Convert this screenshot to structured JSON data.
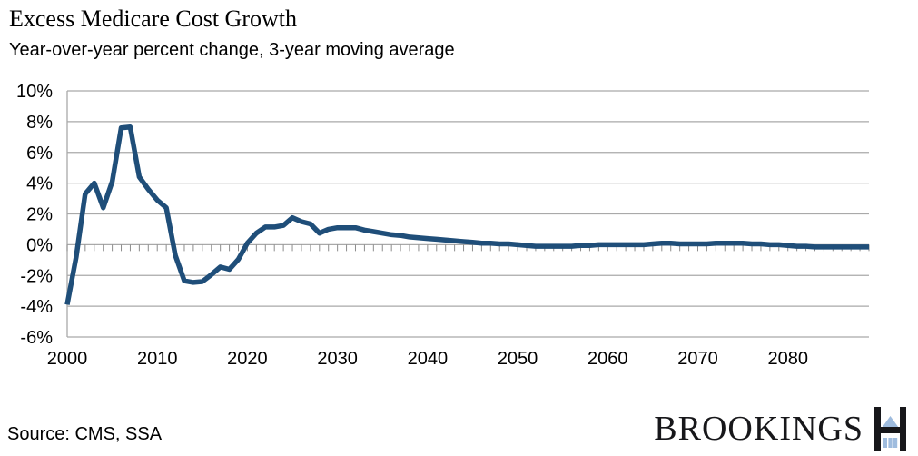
{
  "header": {
    "title": "Excess Medicare Cost Growth",
    "subtitle": "Year-over-year percent change, 3-year moving average"
  },
  "footer": {
    "source": "Source: CMS, SSA",
    "brand": "BROOKINGS"
  },
  "colors": {
    "line": "#1F4E79",
    "grid": "#A9A9A9",
    "axis_tick": "#8C8C8C",
    "text": "#000000",
    "brand_black": "#17171A",
    "brand_blue": "#9FBCDE"
  },
  "chart_data": {
    "type": "line",
    "title": "Excess Medicare Cost Growth",
    "subtitle": "Year-over-year percent change, 3-year moving average",
    "x_range": [
      2000,
      2089
    ],
    "x_step": 1,
    "xlabel": "",
    "ylabel": "",
    "ylim": [
      -6,
      10
    ],
    "grid": "horizontal",
    "legend": "none",
    "zero_axis_year_ticks": true,
    "x_tick_labels": [
      "2000",
      "2010",
      "2020",
      "2030",
      "2040",
      "2050",
      "2060",
      "2070",
      "2080"
    ],
    "x_tick_values": [
      2000,
      2010,
      2020,
      2030,
      2040,
      2050,
      2060,
      2070,
      2080
    ],
    "y_tick_labels": [
      "10%",
      "8%",
      "6%",
      "4%",
      "2%",
      "0%",
      "-2%",
      "-4%",
      "-6%"
    ],
    "y_tick_values": [
      10,
      8,
      6,
      4,
      2,
      0,
      -2,
      -4,
      -6
    ],
    "series": [
      {
        "name": "Excess Medicare cost growth",
        "values": [
          -3.9,
          -0.8,
          3.3,
          4.0,
          2.4,
          4.1,
          7.6,
          7.65,
          4.4,
          3.6,
          2.9,
          2.4,
          -0.7,
          -2.35,
          -2.45,
          -2.4,
          -1.95,
          -1.45,
          -1.6,
          -0.95,
          0.1,
          0.75,
          1.15,
          1.15,
          1.25,
          1.75,
          1.5,
          1.35,
          0.75,
          1.0,
          1.1,
          1.1,
          1.1,
          0.95,
          0.85,
          0.75,
          0.65,
          0.6,
          0.5,
          0.45,
          0.4,
          0.35,
          0.3,
          0.25,
          0.2,
          0.15,
          0.1,
          0.1,
          0.05,
          0.05,
          0.0,
          -0.05,
          -0.1,
          -0.1,
          -0.1,
          -0.1,
          -0.1,
          -0.05,
          -0.05,
          0.0,
          0.0,
          0.0,
          0.0,
          0.0,
          0.0,
          0.05,
          0.1,
          0.1,
          0.05,
          0.05,
          0.05,
          0.05,
          0.1,
          0.1,
          0.1,
          0.1,
          0.05,
          0.05,
          0.0,
          0.0,
          -0.05,
          -0.1,
          -0.1,
          -0.15,
          -0.15,
          -0.15,
          -0.15,
          -0.15,
          -0.15,
          -0.15
        ]
      }
    ]
  }
}
